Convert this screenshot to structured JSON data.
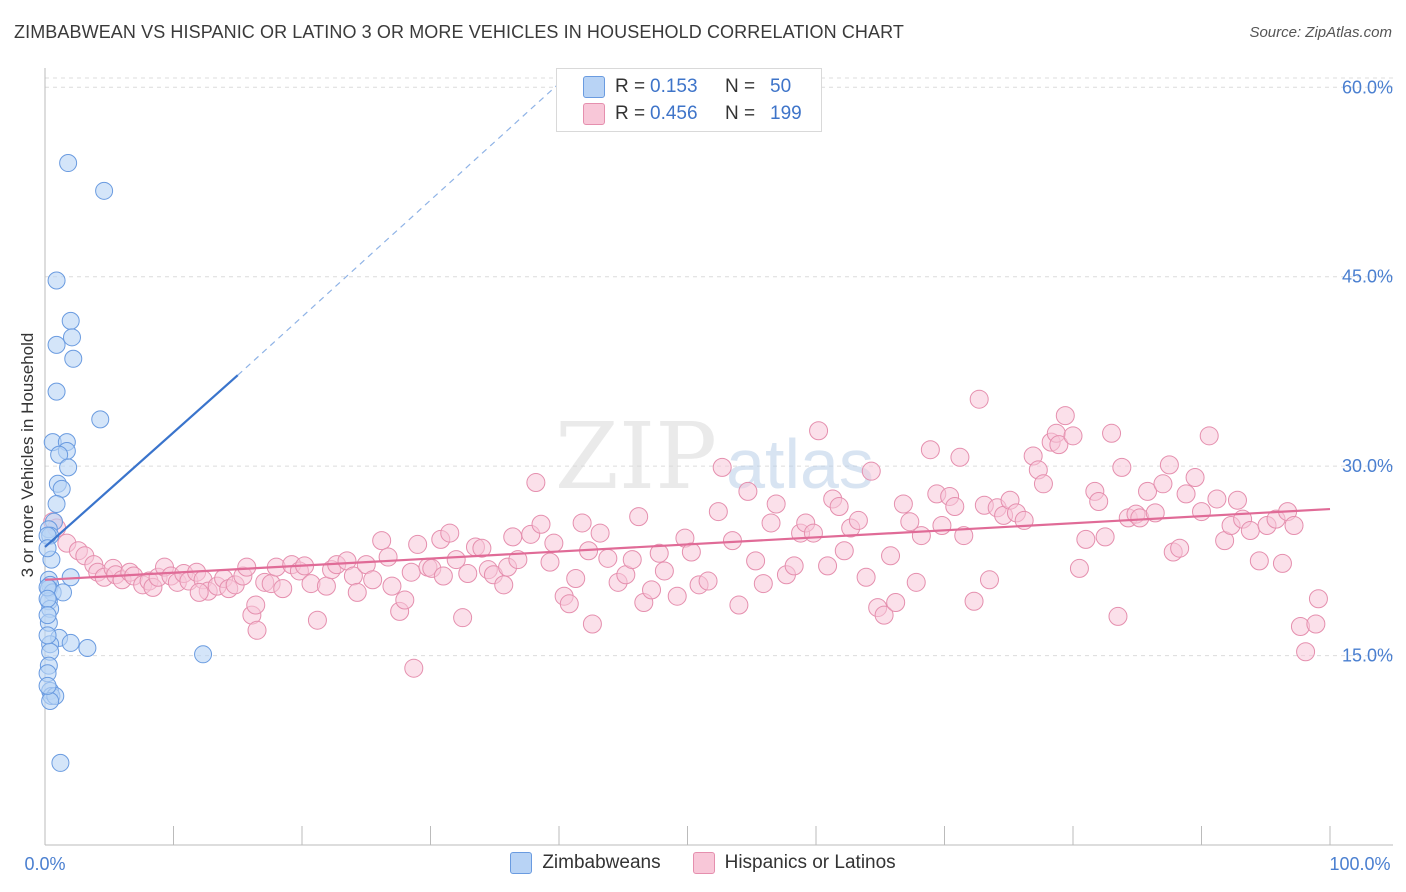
{
  "title": "ZIMBABWEAN VS HISPANIC OR LATINO 3 OR MORE VEHICLES IN HOUSEHOLD CORRELATION CHART",
  "source": "Source: ZipAtlas.com",
  "watermark": {
    "zip": "ZIP",
    "atlas": "atlas"
  },
  "stats": {
    "rows": [
      {
        "r_label": "R =",
        "r_value": "0.153",
        "n_label": "N =",
        "n_value": "50",
        "color": "#b8d3f5"
      },
      {
        "r_label": "R =",
        "r_value": "0.456",
        "n_label": "N =",
        "n_value": "199",
        "color": "#f8c7d8"
      }
    ]
  },
  "legend": {
    "items": [
      {
        "label": "Zimbabweans",
        "color": "#b8d3f5"
      },
      {
        "label": "Hispanics or Latinos",
        "color": "#f8c7d8"
      }
    ]
  },
  "chart_data": {
    "type": "scatter",
    "xlabel": "",
    "ylabel": "3 or more Vehicles in Household",
    "xlim": [
      0,
      100
    ],
    "ylim": [
      0,
      62
    ],
    "x_tick_labels": [
      "0.0%",
      "100.0%"
    ],
    "y_ticks": [
      15,
      30,
      45,
      60
    ],
    "y_tick_labels": [
      "15.0%",
      "30.0%",
      "45.0%",
      "60.0%"
    ],
    "grid": true,
    "legend_position": "bottom",
    "series": [
      {
        "name": "Zimbabweans",
        "color": "#6a9be0",
        "fill": "#b8d3f5",
        "points": [
          [
            1.8,
            54.0
          ],
          [
            4.6,
            51.8
          ],
          [
            0.9,
            44.7
          ],
          [
            2.0,
            41.5
          ],
          [
            2.1,
            40.2
          ],
          [
            0.9,
            39.6
          ],
          [
            2.2,
            38.5
          ],
          [
            0.9,
            35.9
          ],
          [
            4.3,
            33.7
          ],
          [
            0.6,
            31.9
          ],
          [
            1.7,
            31.9
          ],
          [
            1.7,
            31.2
          ],
          [
            1.1,
            30.9
          ],
          [
            1.8,
            29.9
          ],
          [
            1.0,
            28.6
          ],
          [
            1.3,
            28.2
          ],
          [
            0.9,
            27.0
          ],
          [
            0.7,
            25.6
          ],
          [
            0.3,
            25.0
          ],
          [
            0.4,
            24.5
          ],
          [
            0.5,
            22.6
          ],
          [
            0.3,
            21.0
          ],
          [
            2.0,
            21.2
          ],
          [
            0.4,
            20.6
          ],
          [
            0.3,
            20.3
          ],
          [
            0.6,
            20.0
          ],
          [
            1.4,
            20.0
          ],
          [
            0.3,
            19.3
          ],
          [
            0.4,
            18.7
          ],
          [
            0.3,
            17.6
          ],
          [
            1.1,
            16.4
          ],
          [
            2.0,
            16.0
          ],
          [
            3.3,
            15.6
          ],
          [
            0.4,
            15.9
          ],
          [
            0.4,
            15.3
          ],
          [
            12.3,
            15.1
          ],
          [
            0.3,
            14.2
          ],
          [
            0.4,
            12.2
          ],
          [
            0.5,
            11.8
          ],
          [
            0.8,
            11.8
          ],
          [
            0.4,
            11.4
          ],
          [
            1.2,
            6.5
          ],
          [
            0.2,
            24.5
          ],
          [
            0.2,
            23.5
          ],
          [
            0.2,
            20.4
          ],
          [
            0.2,
            19.5
          ],
          [
            0.2,
            18.2
          ],
          [
            0.2,
            16.6
          ],
          [
            0.2,
            13.6
          ],
          [
            0.2,
            12.6
          ]
        ],
        "trend": {
          "x1": 0,
          "y1": 23.6,
          "x2": 15,
          "y2": 37.2,
          "dashed_to_x": 40,
          "dashed_to_y": 60.3
        }
      },
      {
        "name": "Hispanics or Latinos",
        "color": "#e58fae",
        "fill": "#f8c7d8",
        "points": [
          [
            0.6,
            25.6
          ],
          [
            0.9,
            25.1
          ],
          [
            1.7,
            23.9
          ],
          [
            2.6,
            23.3
          ],
          [
            3.1,
            22.9
          ],
          [
            3.8,
            22.2
          ],
          [
            4.1,
            21.6
          ],
          [
            4.6,
            21.2
          ],
          [
            5.3,
            21.9
          ],
          [
            5.5,
            21.4
          ],
          [
            6.0,
            21.0
          ],
          [
            6.6,
            21.6
          ],
          [
            6.9,
            21.3
          ],
          [
            7.6,
            20.6
          ],
          [
            8.1,
            20.9
          ],
          [
            8.4,
            20.4
          ],
          [
            8.8,
            21.2
          ],
          [
            9.3,
            22.0
          ],
          [
            9.8,
            21.3
          ],
          [
            10.3,
            20.8
          ],
          [
            10.8,
            21.5
          ],
          [
            11.2,
            20.9
          ],
          [
            11.8,
            21.6
          ],
          [
            12.3,
            21.0
          ],
          [
            12.7,
            20.1
          ],
          [
            13.4,
            20.5
          ],
          [
            13.9,
            21.1
          ],
          [
            14.3,
            20.3
          ],
          [
            14.8,
            20.6
          ],
          [
            15.4,
            21.3
          ],
          [
            15.7,
            22.0
          ],
          [
            16.1,
            18.2
          ],
          [
            16.5,
            17.0
          ],
          [
            17.1,
            20.8
          ],
          [
            17.6,
            20.7
          ],
          [
            18.0,
            22.0
          ],
          [
            18.5,
            20.3
          ],
          [
            19.2,
            22.2
          ],
          [
            19.8,
            21.7
          ],
          [
            20.2,
            22.1
          ],
          [
            20.7,
            20.7
          ],
          [
            21.2,
            17.8
          ],
          [
            21.9,
            20.5
          ],
          [
            22.3,
            21.8
          ],
          [
            22.7,
            22.2
          ],
          [
            23.5,
            22.5
          ],
          [
            24.0,
            21.3
          ],
          [
            24.3,
            20.0
          ],
          [
            25.0,
            22.2
          ],
          [
            25.5,
            21.0
          ],
          [
            26.2,
            24.1
          ],
          [
            26.7,
            22.8
          ],
          [
            27.0,
            20.5
          ],
          [
            27.6,
            18.5
          ],
          [
            28.0,
            19.4
          ],
          [
            28.5,
            21.6
          ],
          [
            29.0,
            23.8
          ],
          [
            29.8,
            22.0
          ],
          [
            30.1,
            21.9
          ],
          [
            30.8,
            24.2
          ],
          [
            31.5,
            24.7
          ],
          [
            31.0,
            21.3
          ],
          [
            32.0,
            22.6
          ],
          [
            32.5,
            18.0
          ],
          [
            32.9,
            21.5
          ],
          [
            33.5,
            23.6
          ],
          [
            34.0,
            23.5
          ],
          [
            34.5,
            21.8
          ],
          [
            34.9,
            21.4
          ],
          [
            35.7,
            20.6
          ],
          [
            36.0,
            22.0
          ],
          [
            36.4,
            24.4
          ],
          [
            36.8,
            22.6
          ],
          [
            37.8,
            24.6
          ],
          [
            38.2,
            28.7
          ],
          [
            38.6,
            25.4
          ],
          [
            39.3,
            22.4
          ],
          [
            39.6,
            23.9
          ],
          [
            40.4,
            19.7
          ],
          [
            40.8,
            19.1
          ],
          [
            41.3,
            21.1
          ],
          [
            41.8,
            25.5
          ],
          [
            42.3,
            23.3
          ],
          [
            42.6,
            17.5
          ],
          [
            43.2,
            24.7
          ],
          [
            43.8,
            22.7
          ],
          [
            44.6,
            20.8
          ],
          [
            45.2,
            21.4
          ],
          [
            45.7,
            22.6
          ],
          [
            46.2,
            26.0
          ],
          [
            46.6,
            19.2
          ],
          [
            47.2,
            20.2
          ],
          [
            47.8,
            23.1
          ],
          [
            48.2,
            21.7
          ],
          [
            49.2,
            19.7
          ],
          [
            49.8,
            24.3
          ],
          [
            50.3,
            23.2
          ],
          [
            50.9,
            20.6
          ],
          [
            51.6,
            20.9
          ],
          [
            52.4,
            26.4
          ],
          [
            52.7,
            29.9
          ],
          [
            53.5,
            24.1
          ],
          [
            54.0,
            19.0
          ],
          [
            54.7,
            28.0
          ],
          [
            55.3,
            22.5
          ],
          [
            55.9,
            20.7
          ],
          [
            56.5,
            25.5
          ],
          [
            56.9,
            27.0
          ],
          [
            57.7,
            21.4
          ],
          [
            58.3,
            22.1
          ],
          [
            58.8,
            24.7
          ],
          [
            59.2,
            25.5
          ],
          [
            59.8,
            24.7
          ],
          [
            60.2,
            32.8
          ],
          [
            60.9,
            22.1
          ],
          [
            61.3,
            27.4
          ],
          [
            61.8,
            26.8
          ],
          [
            62.2,
            23.3
          ],
          [
            62.7,
            25.1
          ],
          [
            63.3,
            25.7
          ],
          [
            63.9,
            21.2
          ],
          [
            64.3,
            29.6
          ],
          [
            64.8,
            18.8
          ],
          [
            65.3,
            18.2
          ],
          [
            65.8,
            22.9
          ],
          [
            66.2,
            19.2
          ],
          [
            66.8,
            27.0
          ],
          [
            67.3,
            25.6
          ],
          [
            67.8,
            20.8
          ],
          [
            68.2,
            24.5
          ],
          [
            68.9,
            31.3
          ],
          [
            69.4,
            27.8
          ],
          [
            69.8,
            25.3
          ],
          [
            70.4,
            27.6
          ],
          [
            70.8,
            26.8
          ],
          [
            71.2,
            30.7
          ],
          [
            71.5,
            24.5
          ],
          [
            72.3,
            19.3
          ],
          [
            72.7,
            35.3
          ],
          [
            73.1,
            26.9
          ],
          [
            73.5,
            21.0
          ],
          [
            74.1,
            26.7
          ],
          [
            74.6,
            26.1
          ],
          [
            75.1,
            27.3
          ],
          [
            75.6,
            26.3
          ],
          [
            76.2,
            25.7
          ],
          [
            76.9,
            30.8
          ],
          [
            77.3,
            29.7
          ],
          [
            77.7,
            28.6
          ],
          [
            78.3,
            31.9
          ],
          [
            78.7,
            32.6
          ],
          [
            78.9,
            31.7
          ],
          [
            79.4,
            34.0
          ],
          [
            80.0,
            32.4
          ],
          [
            80.5,
            21.9
          ],
          [
            81.0,
            24.2
          ],
          [
            81.7,
            28.0
          ],
          [
            82.0,
            27.2
          ],
          [
            82.5,
            24.4
          ],
          [
            83.0,
            32.6
          ],
          [
            83.5,
            18.1
          ],
          [
            83.8,
            29.9
          ],
          [
            84.3,
            25.9
          ],
          [
            84.9,
            26.2
          ],
          [
            85.2,
            25.9
          ],
          [
            85.8,
            28.0
          ],
          [
            86.4,
            26.3
          ],
          [
            87.0,
            28.6
          ],
          [
            87.5,
            30.1
          ],
          [
            87.8,
            23.2
          ],
          [
            88.3,
            23.5
          ],
          [
            88.8,
            27.8
          ],
          [
            89.5,
            29.1
          ],
          [
            90.0,
            26.4
          ],
          [
            90.6,
            32.4
          ],
          [
            91.2,
            27.4
          ],
          [
            91.8,
            24.1
          ],
          [
            92.3,
            25.3
          ],
          [
            92.8,
            27.3
          ],
          [
            93.2,
            25.8
          ],
          [
            93.8,
            24.9
          ],
          [
            94.5,
            22.5
          ],
          [
            95.1,
            25.3
          ],
          [
            95.8,
            25.8
          ],
          [
            96.3,
            22.3
          ],
          [
            96.7,
            26.4
          ],
          [
            97.2,
            25.3
          ],
          [
            97.7,
            17.3
          ],
          [
            98.1,
            15.3
          ],
          [
            98.9,
            17.5
          ],
          [
            99.1,
            19.5
          ],
          [
            12.0,
            20.0
          ],
          [
            16.4,
            19.0
          ],
          [
            28.7,
            14.0
          ]
        ],
        "trend": {
          "x1": 0,
          "y1": 21.0,
          "x2": 100,
          "y2": 26.6
        }
      }
    ]
  }
}
